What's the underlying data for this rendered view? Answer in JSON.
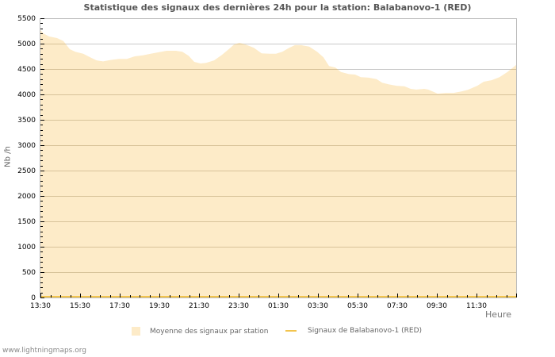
{
  "title": "Statistique des signaux des dernières 24h pour la station: Balabanovo-1 (RED)",
  "credit": "www.lightningmaps.org",
  "colors": {
    "area_fill": "#fdebc8",
    "station_line": "#f2c44e",
    "grid": "#c8c8c8",
    "grid_in_area": "#d8c39a",
    "axis": "#bbbbbb"
  },
  "legend": {
    "items": [
      {
        "label": "Moyenne des signaux par station",
        "type": "area",
        "color": "#fdebc8"
      },
      {
        "label": "Signaux de Balabanovo-1 (RED)",
        "type": "line",
        "color": "#f2c44e"
      }
    ]
  },
  "chart_data": {
    "type": "area",
    "title": "Statistique des signaux des dernières 24h pour la station: Balabanovo-1 (RED)",
    "xlabel": "Heure",
    "ylabel": "Nb /h",
    "ylim": [
      0,
      5500
    ],
    "yticks": [
      0,
      500,
      1000,
      1500,
      2000,
      2500,
      3000,
      3500,
      4000,
      4500,
      5000,
      5500
    ],
    "xticks": [
      "13:30",
      "15:30",
      "17:30",
      "19:30",
      "21:30",
      "23:30",
      "01:30",
      "03:30",
      "05:30",
      "07:30",
      "09:30",
      "11:30"
    ],
    "grid": true,
    "legend_position": "bottom",
    "x_range_hours": [
      0,
      24
    ],
    "series": [
      {
        "name": "Moyenne des signaux par station",
        "style": "area",
        "x_hours": [
          0,
          0.16,
          0.44,
          0.84,
          1.16,
          1.48,
          1.76,
          2.16,
          2.56,
          2.84,
          3.16,
          3.56,
          3.96,
          4.36,
          4.76,
          5.16,
          5.56,
          5.96,
          6.36,
          6.84,
          7.16,
          7.48,
          7.76,
          8.08,
          8.36,
          8.76,
          9.16,
          9.56,
          9.76,
          10.04,
          10.36,
          10.76,
          11.16,
          11.56,
          11.88,
          12.2,
          12.56,
          12.84,
          13.16,
          13.56,
          13.96,
          14.28,
          14.56,
          14.88,
          15.16,
          15.56,
          15.88,
          16.16,
          16.56,
          16.96,
          17.24,
          17.56,
          17.96,
          18.36,
          18.68,
          18.96,
          19.36,
          19.56,
          20.04,
          20.44,
          20.84,
          21.24,
          21.56,
          22.04,
          22.36,
          22.76,
          23.16,
          23.56,
          24
        ],
        "values": [
          5265,
          5200,
          5140,
          5110,
          5050,
          4890,
          4840,
          4800,
          4720,
          4670,
          4650,
          4680,
          4700,
          4700,
          4750,
          4770,
          4800,
          4830,
          4860,
          4860,
          4840,
          4760,
          4640,
          4610,
          4620,
          4670,
          4780,
          4910,
          4980,
          5015,
          4980,
          4920,
          4810,
          4800,
          4800,
          4840,
          4920,
          4970,
          4970,
          4940,
          4840,
          4730,
          4560,
          4530,
          4440,
          4400,
          4390,
          4340,
          4330,
          4300,
          4230,
          4200,
          4170,
          4160,
          4110,
          4095,
          4110,
          4095,
          4015,
          4030,
          4030,
          4060,
          4090,
          4170,
          4250,
          4280,
          4340,
          4440,
          4580
        ]
      },
      {
        "name": "Signaux de Balabanovo-1 (RED)",
        "style": "line",
        "x_hours": [
          0,
          24
        ],
        "values": [
          0,
          0
        ]
      }
    ]
  }
}
